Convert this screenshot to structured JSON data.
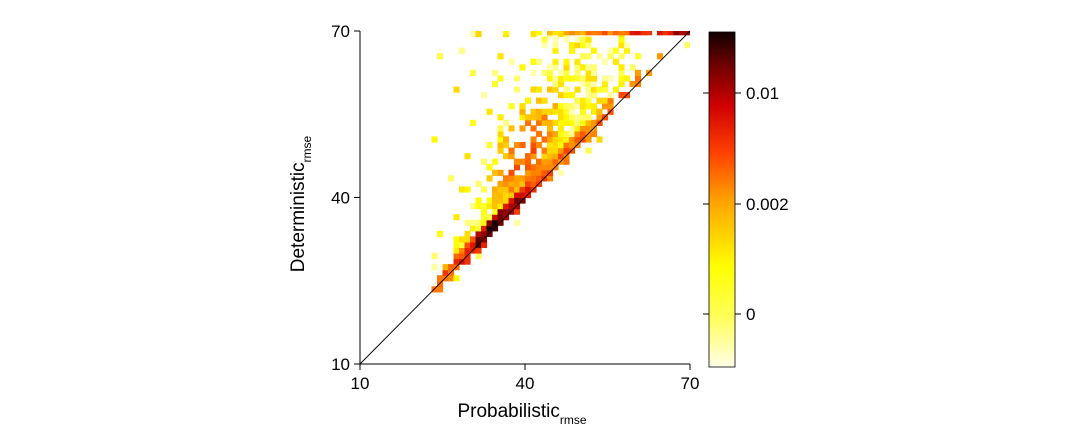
{
  "chart_data": {
    "type": "heatmap",
    "title": "",
    "xlabel": "Probabilistic",
    "xlabel_subscript": "rmse",
    "ylabel": "Deterministic",
    "ylabel_subscript": "rmse",
    "xlim": [
      10,
      70
    ],
    "ylim": [
      10,
      70
    ],
    "x_ticks": [
      10,
      40,
      70
    ],
    "y_ticks": [
      10,
      40,
      70
    ],
    "x_tick_labels": [
      "10",
      "40",
      "70"
    ],
    "y_tick_labels": [
      "10",
      "40",
      "70"
    ],
    "reference_line": {
      "type": "identity",
      "from": [
        10,
        10
      ],
      "to": [
        70,
        70
      ]
    },
    "bin_width": 1,
    "colorbar": {
      "tick_labels": [
        "0",
        "0.002",
        "0.01"
      ],
      "colormap": [
        "#ffffe8",
        "#ffff00",
        "#ff9a00",
        "#ff2a00",
        "#c00000",
        "#5a0000",
        "#100000"
      ]
    },
    "density_summary": {
      "ridge": "Peak density along the identity line between about 29 and 41",
      "upper_edge": "Points with values of 70 or more accumulate on the top row"
    },
    "grid": false,
    "legend": "colorbar right"
  }
}
